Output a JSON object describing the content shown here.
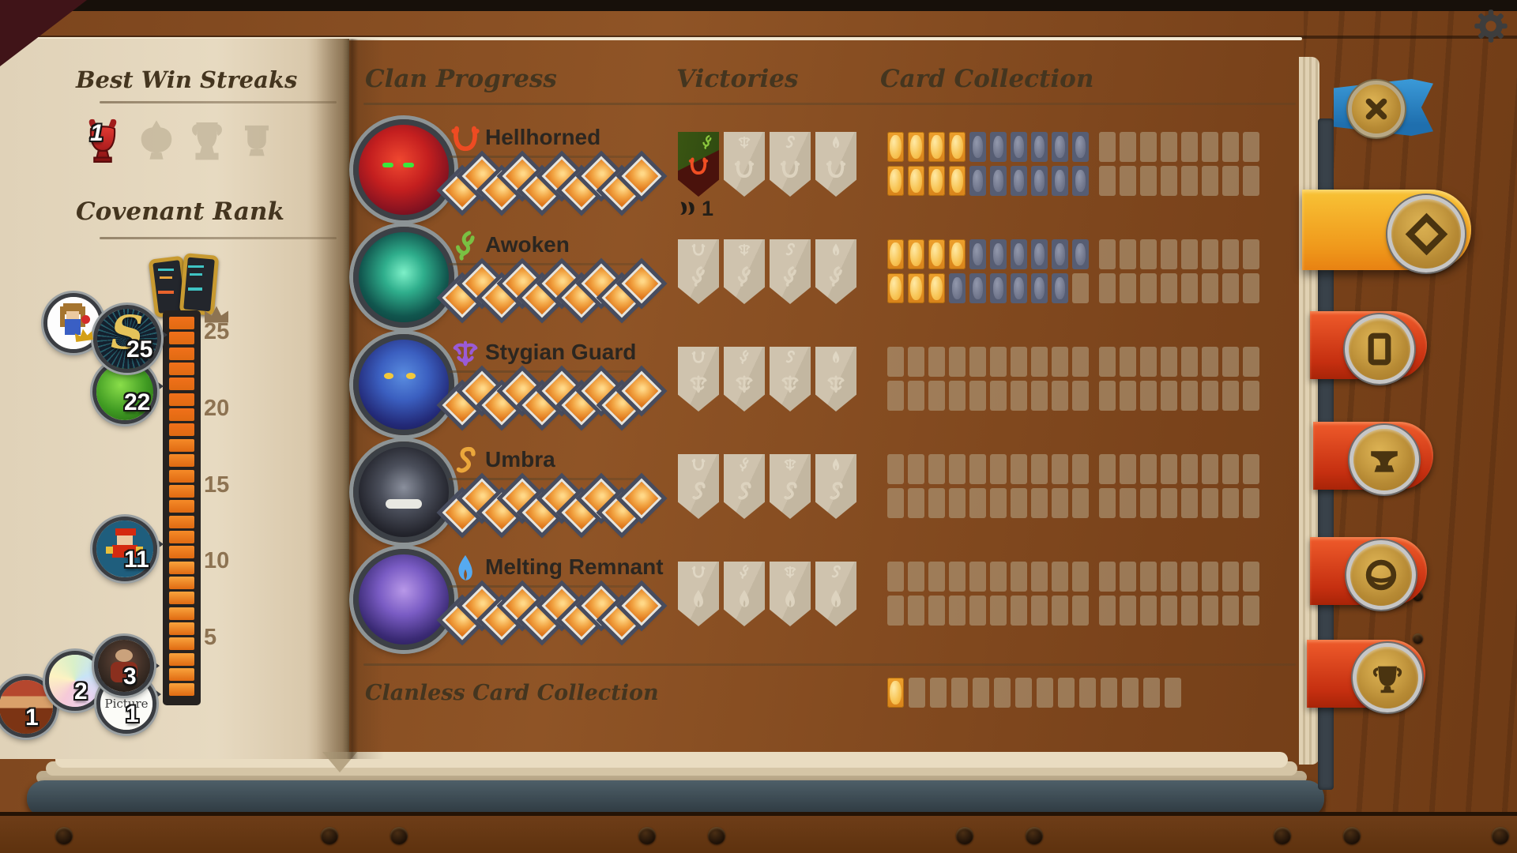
{
  "ui": {
    "settings": {
      "icon": "gear-icon"
    },
    "tabs": [
      {
        "id": "close",
        "icon": "x-icon",
        "color": "#2e8cc9"
      },
      {
        "id": "clan-progress",
        "icon": "diamond-icon",
        "color": "#f3a61f",
        "active": true
      },
      {
        "id": "cards",
        "icon": "card-icon",
        "color": "#d63d1b"
      },
      {
        "id": "anvil",
        "icon": "anvil-icon",
        "color": "#d63d1b"
      },
      {
        "id": "orb",
        "icon": "orb-icon",
        "color": "#d63d1b"
      },
      {
        "id": "trophies",
        "icon": "trophy-icon",
        "color": "#df5a1f"
      }
    ]
  },
  "left_page": {
    "best_win_streaks": {
      "title": "Best Win Streaks",
      "slots": [
        {
          "earned": true,
          "streak": "1"
        },
        {
          "earned": false
        },
        {
          "earned": false
        },
        {
          "earned": false
        }
      ]
    },
    "covenant_rank": {
      "title": "Covenant Rank",
      "tick_labels": [
        "25",
        "20",
        "15",
        "10",
        "5"
      ],
      "bar": {
        "segments_total": 25,
        "segments_filled": 25
      },
      "friend_badges": [
        {
          "id": "pixel-girl",
          "rank": "",
          "crowned": true
        },
        {
          "id": "gold-s",
          "rank": "25"
        },
        {
          "id": "moss-ball",
          "rank": "22"
        },
        {
          "id": "pixel-plumber",
          "rank": "11"
        },
        {
          "id": "dark-portrait",
          "rank": "3"
        },
        {
          "id": "prism",
          "rank": "2"
        },
        {
          "id": "dwarf",
          "rank": "1"
        },
        {
          "id": "picture",
          "rank": "1",
          "label": "Picture"
        }
      ]
    }
  },
  "right_page": {
    "headers": {
      "clan_progress": "Clan Progress",
      "victories": "Victories",
      "card_collection": "Card Collection"
    },
    "clans": [
      {
        "name": "Hellhorned",
        "glyph": "horn-icon",
        "color": "#ee4b22",
        "diamonds": {
          "filled": 10,
          "total": 10
        },
        "victories": {
          "win_count": "1",
          "banners": [
            {
              "partner": "Awoken",
              "won": true
            },
            {
              "partner": "Stygian Guard",
              "won": false
            },
            {
              "partner": "Umbra",
              "won": false
            },
            {
              "partner": "Melting Remnant",
              "won": false
            }
          ]
        },
        "card_lines": [
          {
            "gold": 4,
            "unlocked": 6,
            "empty": 8
          },
          {
            "gold": 4,
            "unlocked": 6,
            "empty": 8
          }
        ]
      },
      {
        "name": "Awoken",
        "glyph": "sprout-icon",
        "color": "#79c043",
        "diamonds": {
          "filled": 10,
          "total": 10
        },
        "victories": {
          "win_count": "",
          "banners": [
            {
              "partner": "Hellhorned",
              "won": false
            },
            {
              "partner": "Stygian Guard",
              "won": false
            },
            {
              "partner": "Umbra",
              "won": false
            },
            {
              "partner": "Melting Remnant",
              "won": false
            }
          ]
        },
        "card_lines": [
          {
            "gold": 4,
            "unlocked": 6,
            "empty": 8
          },
          {
            "gold": 3,
            "unlocked": 6,
            "empty": 9
          }
        ]
      },
      {
        "name": "Stygian Guard",
        "glyph": "tentacle-icon",
        "color": "#9a5bd6",
        "diamonds": {
          "filled": 10,
          "total": 10
        },
        "victories": {
          "win_count": "",
          "banners": [
            {
              "partner": "Hellhorned",
              "won": false
            },
            {
              "partner": "Awoken",
              "won": false
            },
            {
              "partner": "Umbra",
              "won": false
            },
            {
              "partner": "Melting Remnant",
              "won": false
            }
          ]
        },
        "card_lines": [
          {
            "gold": 0,
            "unlocked": 0,
            "empty": 18
          },
          {
            "gold": 0,
            "unlocked": 0,
            "empty": 18
          }
        ]
      },
      {
        "name": "Umbra",
        "glyph": "curl-icon",
        "color": "#eba73b",
        "diamonds": {
          "filled": 10,
          "total": 10
        },
        "victories": {
          "win_count": "",
          "banners": [
            {
              "partner": "Hellhorned",
              "won": false
            },
            {
              "partner": "Awoken",
              "won": false
            },
            {
              "partner": "Stygian Guard",
              "won": false
            },
            {
              "partner": "Melting Remnant",
              "won": false
            }
          ]
        },
        "card_lines": [
          {
            "gold": 0,
            "unlocked": 0,
            "empty": 18
          },
          {
            "gold": 0,
            "unlocked": 0,
            "empty": 18
          }
        ]
      },
      {
        "name": "Melting Remnant",
        "glyph": "flame-icon",
        "color": "#56aaf0",
        "diamonds": {
          "filled": 10,
          "total": 10
        },
        "victories": {
          "win_count": "",
          "banners": [
            {
              "partner": "Hellhorned",
              "won": false
            },
            {
              "partner": "Awoken",
              "won": false
            },
            {
              "partner": "Stygian Guard",
              "won": false
            },
            {
              "partner": "Umbra",
              "won": false
            }
          ]
        },
        "card_lines": [
          {
            "gold": 0,
            "unlocked": 0,
            "empty": 18
          },
          {
            "gold": 0,
            "unlocked": 0,
            "empty": 18
          }
        ]
      }
    ],
    "clanless": {
      "label": "Clanless Card Collection",
      "card_line": {
        "gold": 1,
        "unlocked": 0,
        "empty": 13
      }
    }
  },
  "colors": {
    "card_gold": "#f2b63f",
    "card_unlocked": "#5a6178",
    "card_empty": "#c3b296",
    "diamond_fill": "#f5a33c",
    "bar_fill": "#f47a1e",
    "page": "#e6d9bf",
    "wood": "#8a4f22",
    "won_banner_green": "#3a5513",
    "won_banner_red": "#4a120c"
  }
}
